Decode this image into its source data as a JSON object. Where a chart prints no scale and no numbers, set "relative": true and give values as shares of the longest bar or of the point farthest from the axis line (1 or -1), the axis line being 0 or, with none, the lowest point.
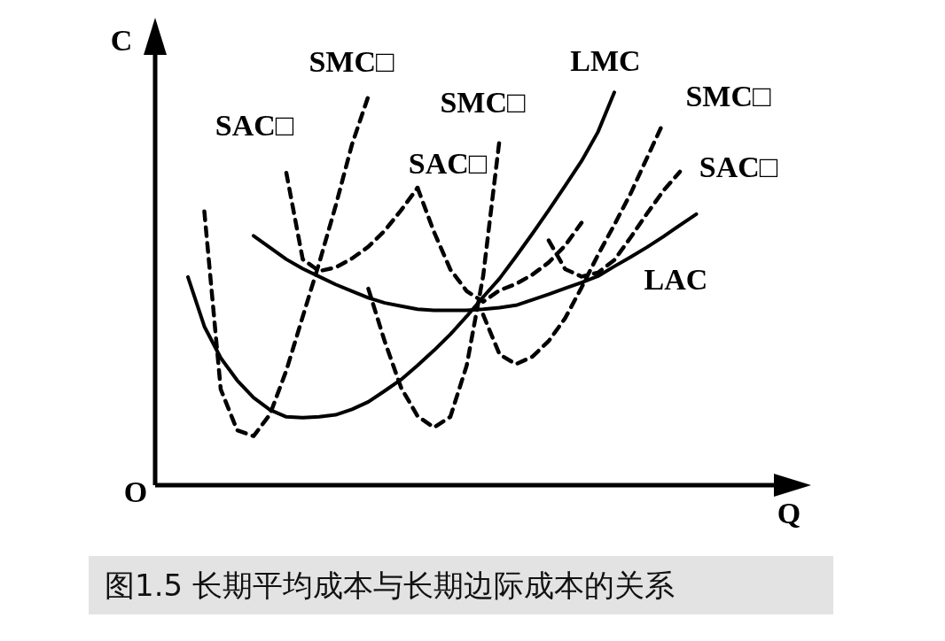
{
  "chart_data": {
    "type": "line",
    "title": "图1.5 长期平均成本与长期边际成本的关系",
    "xlabel": "Q",
    "ylabel": "C",
    "relative": true,
    "legend": false,
    "marker": "none",
    "categories": [
      null,
      null,
      null,
      null,
      null,
      null,
      null,
      null,
      null,
      null,
      null,
      null,
      null,
      null,
      null,
      null,
      null,
      null,
      null,
      null,
      null,
      null,
      null,
      null,
      null,
      null,
      null,
      null,
      null,
      null,
      null,
      null,
      null,
      null,
      null,
      null,
      null,
      null,
      null,
      null,
      null
    ],
    "annotations": [
      "O"
    ],
    "series": [
      {
        "name": "LMC",
        "color": "#000000",
        "line_style": "solid",
        "values": [
          null,
          null,
          0.53,
          0.404,
          0.324,
          0.267,
          0.223,
          0.192,
          0.174,
          0.172,
          0.174,
          0.179,
          0.193,
          0.212,
          0.24,
          0.269,
          0.305,
          0.343,
          0.384,
          0.43,
          0.479,
          0.526,
          0.582,
          0.64,
          0.7,
          0.762,
          0.825,
          0.899,
          1,
          null,
          null,
          null,
          null,
          null,
          null,
          null,
          null,
          null,
          null,
          null,
          null
        ]
      },
      {
        "name": "LAC",
        "color": "#000000",
        "line_style": "solid",
        "values": [
          null,
          null,
          null,
          null,
          null,
          null,
          0.635,
          0.605,
          0.575,
          0.551,
          0.531,
          0.511,
          0.494,
          0.477,
          0.464,
          0.456,
          0.448,
          0.445,
          0.445,
          0.445,
          0.448,
          0.452,
          0.458,
          0.472,
          0.486,
          0.501,
          0.516,
          0.532,
          0.557,
          0.581,
          0.606,
          0.633,
          0.662,
          0.69,
          null,
          null,
          null,
          null,
          null,
          null,
          null
        ]
      },
      {
        "name": "SMC□",
        "color": "#000000",
        "line_style": "dashed",
        "values": [
          null,
          null,
          null,
          0.697,
          0.244,
          0.14,
          0.125,
          0.18,
          0.292,
          0.429,
          0.565,
          0.71,
          0.867,
          0.99,
          null,
          null,
          null,
          null,
          null,
          null,
          null,
          null,
          null,
          null,
          null,
          null,
          null,
          null,
          null,
          null,
          null,
          null,
          null,
          null,
          null,
          null,
          null,
          null,
          null,
          null,
          null
        ]
      },
      {
        "name": "SAC□",
        "color": "#000000",
        "line_style": "dashed",
        "values": [
          null,
          null,
          null,
          null,
          null,
          null,
          null,
          null,
          0.795,
          0.575,
          0.545,
          0.554,
          0.577,
          0.607,
          0.648,
          0.7,
          0.757,
          null,
          null,
          null,
          null,
          null,
          null,
          null,
          null,
          null,
          null,
          null,
          null,
          null,
          null,
          null,
          null,
          null,
          null,
          null,
          null,
          null,
          null,
          null,
          null
        ]
      },
      {
        "name": "SAC□",
        "color": "#000000",
        "line_style": "dashed",
        "values": [
          null,
          null,
          null,
          null,
          null,
          null,
          null,
          null,
          null,
          null,
          null,
          null,
          null,
          null,
          null,
          null,
          0.757,
          0.645,
          0.549,
          0.494,
          0.467,
          0.496,
          0.512,
          0.536,
          0.567,
          0.61,
          0.668,
          null,
          null,
          null,
          null,
          null,
          null,
          null,
          null,
          null,
          null,
          null,
          null,
          null,
          null
        ]
      },
      {
        "name": "SMC□",
        "color": "#000000",
        "line_style": "dashed",
        "values": [
          null,
          null,
          null,
          null,
          null,
          null,
          null,
          null,
          null,
          null,
          null,
          null,
          null,
          0.5,
          0.366,
          0.248,
          0.176,
          0.147,
          0.174,
          0.305,
          0.532,
          0.88,
          null,
          null,
          null,
          null,
          null,
          null,
          null,
          null,
          null,
          null,
          null,
          null,
          null,
          null,
          null,
          null,
          null,
          null,
          null
        ]
      },
      {
        "name": "SAC□",
        "color": "#000000",
        "line_style": "dashed",
        "values": [
          null,
          null,
          null,
          null,
          null,
          null,
          null,
          null,
          null,
          null,
          null,
          null,
          null,
          null,
          null,
          null,
          null,
          null,
          null,
          null,
          null,
          null,
          null,
          null,
          0.623,
          0.55,
          0.531,
          0.541,
          0.573,
          0.631,
          0.692,
          0.75,
          0.798,
          null,
          null,
          null,
          null,
          null,
          null,
          null,
          null
        ]
      },
      {
        "name": "SMC□",
        "color": "#000000",
        "line_style": "dashed",
        "values": [
          null,
          null,
          null,
          null,
          null,
          null,
          null,
          null,
          null,
          null,
          null,
          null,
          null,
          null,
          null,
          null,
          null,
          null,
          null,
          null,
          0.434,
          0.333,
          0.308,
          0.327,
          0.367,
          0.425,
          0.503,
          0.586,
          0.663,
          0.743,
          0.834,
          0.924,
          null,
          null,
          null,
          null,
          null,
          null,
          null,
          null,
          null
        ]
      }
    ]
  }
}
